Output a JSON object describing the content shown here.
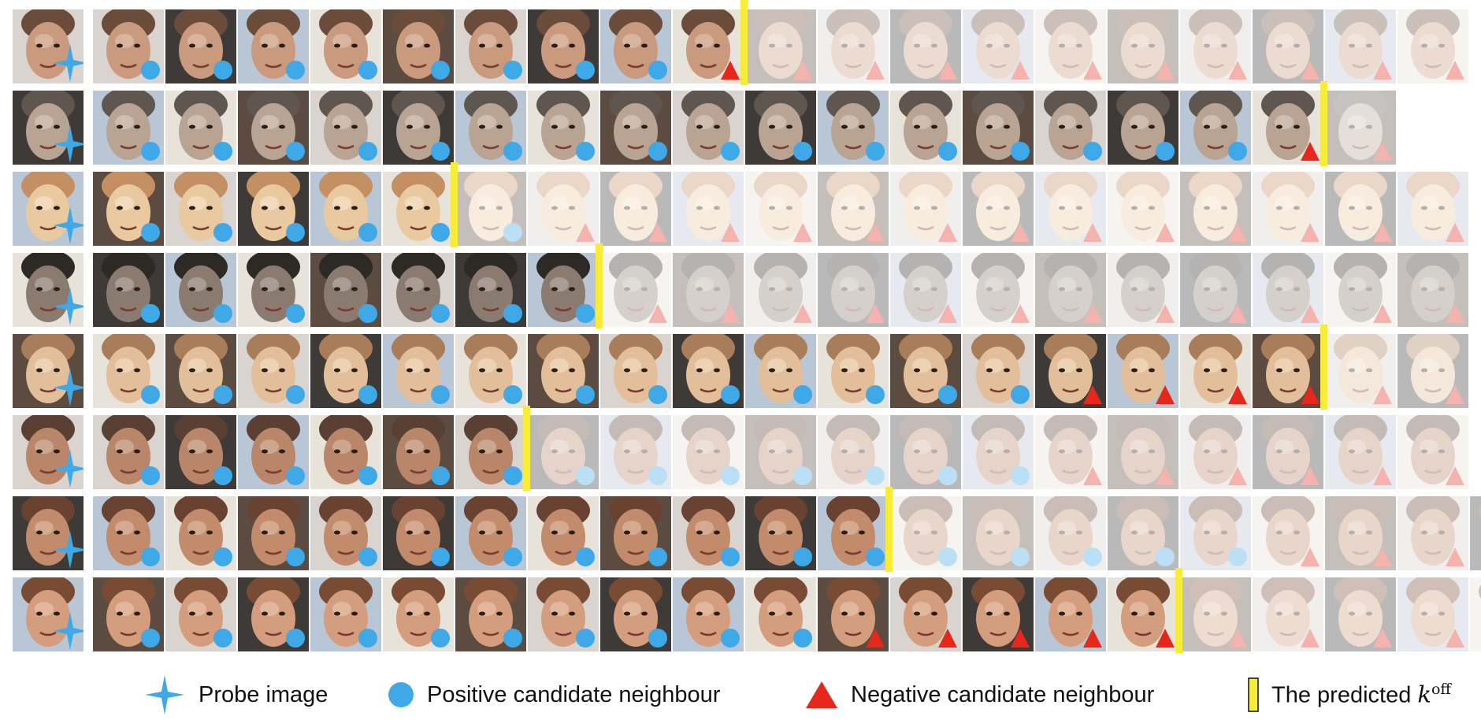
{
  "legend": {
    "probe_label": "Probe image",
    "positive_label": "Positive candidate neighbour",
    "negative_label": "Negative candidate neighbour",
    "koff_prefix": "The predicted",
    "koff_var": "k",
    "koff_sup": "off"
  },
  "colors": {
    "probe_star": "#3fa9e8",
    "positive": "#3fa9e8",
    "negative": "#e5281b",
    "koff_bar": "#f7ec3a"
  },
  "rows": [
    {
      "palette": [
        "#c99a7e",
        "#6b4b3a",
        "#e9d6c6"
      ],
      "markers": "PPPPPPPPNNNNNNNNNNN",
      "k_off": 9,
      "faded_from": 10
    },
    {
      "palette": [
        "#b9a393",
        "#5f5650",
        "#e6dfd8"
      ],
      "markers": "PPPPPPPPPPPPPPPPNN",
      "k_off": 17,
      "faded_from": 18
    },
    {
      "palette": [
        "#e9c9a0",
        "#c48f63",
        "#fff2df"
      ],
      "markers": "PPPPPPNNNNNNNNNNNNN",
      "k_off": 5,
      "faded_from": 6
    },
    {
      "palette": [
        "#8a7a6f",
        "#2d2925",
        "#cfc6bd"
      ],
      "markers": "PPPPPPPNNNNNNNNNNNN",
      "k_off": 7,
      "faded_from": 8
    },
    {
      "palette": [
        "#e2bf9a",
        "#a97d5a",
        "#fbecd6"
      ],
      "markers": "PPPPPPPPPPPPPNNNNNN",
      "k_off": 17,
      "faded_from": 18
    },
    {
      "palette": [
        "#b9866a",
        "#5a4032",
        "#e5d0be"
      ],
      "markers": "PPPPPPPPPPPPPNNNNNN",
      "k_off": 6,
      "faded_from": 7
    },
    {
      "palette": [
        "#c28b6b",
        "#6a4231",
        "#ecd3c2"
      ],
      "markers": "PPPPPPPPPPPPPPPPNNNN",
      "k_off": 11,
      "faded_from": 12
    },
    {
      "palette": [
        "#d49d7e",
        "#7a4b33",
        "#f1d7c5"
      ],
      "markers": "PPPPPPPPPPNNNNNNNNNN",
      "k_off": 15,
      "faded_from": 16
    }
  ]
}
